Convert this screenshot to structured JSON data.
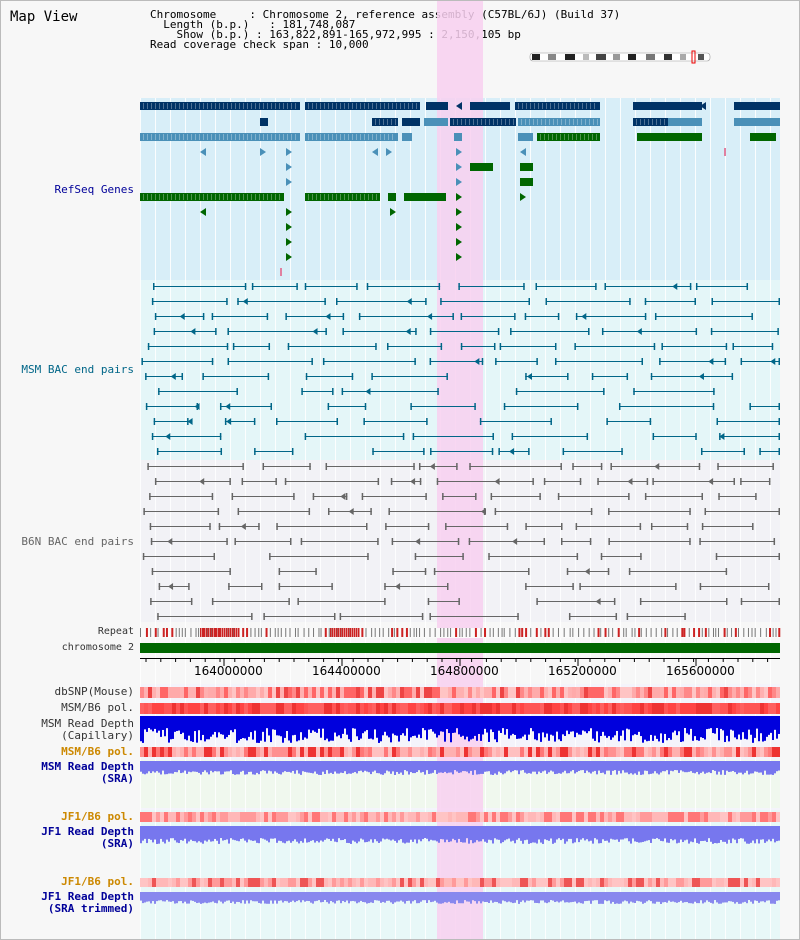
{
  "page_title": "Map View",
  "info": {
    "chromosome_key": "Chromosome",
    "chromosome_value": "Chromosome 2, reference assembly (C57BL/6J) (Build 37)",
    "length_key": "Length (b.p.)",
    "length_value": "181,748,087",
    "show_key": "Show (b.p.)",
    "show_value": "163,822,891-165,972,995 : 2,150,105 bp",
    "span_key": "Read coverage check span",
    "span_value": "10,000"
  },
  "tracks": {
    "refseq": "RefSeq Genes",
    "msm_bac": "MSM BAC end pairs",
    "b6n_bac": "B6N BAC end pairs",
    "repeat": "Repeat",
    "chromosome": "chromosome 2",
    "dbsnp": "dbSNP(Mouse)",
    "msm_pol1": "MSM/B6 pol.",
    "msm_depth_cap_1": "MSM Read Depth",
    "msm_depth_cap_2": "(Capillary)",
    "msm_pol2": "MSM/B6 pol.",
    "msm_depth_sra_1": "MSM Read Depth",
    "msm_depth_sra_2": "(SRA)",
    "jf1_pol1": "JF1/B6 pol.",
    "jf1_depth_sra_1": "JF1 Read Depth",
    "jf1_depth_sra_2": "(SRA)",
    "jf1_pol2": "JF1/B6 pol.",
    "jf1_depth_trim_1": "JF1 Read Depth",
    "jf1_depth_trim_2": "(SRA trimmed)"
  },
  "axis": {
    "ticks": [
      "164000000",
      "164400000",
      "164800000",
      "165200000",
      "165600000"
    ]
  },
  "colors": {
    "highlight": "#f8d0f0",
    "refseq_bg": "#d8eef8",
    "gene_navy": "#003366",
    "gene_steel": "#4a90b8",
    "gene_green": "#006600",
    "bac_msm": "#006688",
    "bac_b6n": "#666666",
    "chromosome_bar": "#006600",
    "snp_red": "#ee4444",
    "depth_blue": "#0000dd",
    "depth_lavender": "#7777ee"
  }
}
